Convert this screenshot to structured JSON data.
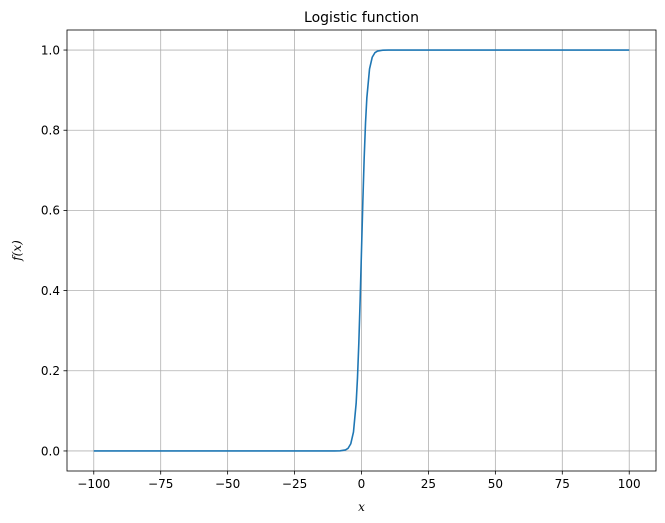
{
  "chart_data": {
    "type": "line",
    "title": "Logistic function",
    "xlabel": "x",
    "ylabel": "f(x)",
    "xlim": [
      -110,
      110
    ],
    "ylim": [
      -0.05,
      1.05
    ],
    "grid": true,
    "x_ticks": [
      -100,
      -75,
      -50,
      -25,
      0,
      25,
      50,
      75,
      100
    ],
    "x_tick_labels": [
      "−100",
      "−75",
      "−50",
      "−25",
      "0",
      "25",
      "50",
      "75",
      "100"
    ],
    "y_ticks": [
      0.0,
      0.2,
      0.4,
      0.6,
      0.8,
      1.0
    ],
    "y_tick_labels": [
      "0.0",
      "0.2",
      "0.4",
      "0.6",
      "0.8",
      "1.0"
    ],
    "series": [
      {
        "color": "#1f77b4",
        "x": [
          -100,
          -75,
          -50,
          -25,
          -10,
          -8,
          -6,
          -5,
          -4,
          -3,
          -2,
          -1.5,
          -1,
          -0.5,
          0,
          0.5,
          1,
          1.5,
          2,
          3,
          4,
          5,
          6,
          8,
          10,
          25,
          50,
          75,
          100
        ],
        "y": [
          0.0,
          0.0,
          0.0,
          0.0,
          5e-05,
          0.0003,
          0.0025,
          0.0067,
          0.018,
          0.047,
          0.119,
          0.182,
          0.269,
          0.378,
          0.5,
          0.622,
          0.731,
          0.818,
          0.881,
          0.953,
          0.982,
          0.9933,
          0.9975,
          0.9997,
          0.99995,
          1.0,
          1.0,
          1.0,
          1.0
        ]
      }
    ]
  }
}
